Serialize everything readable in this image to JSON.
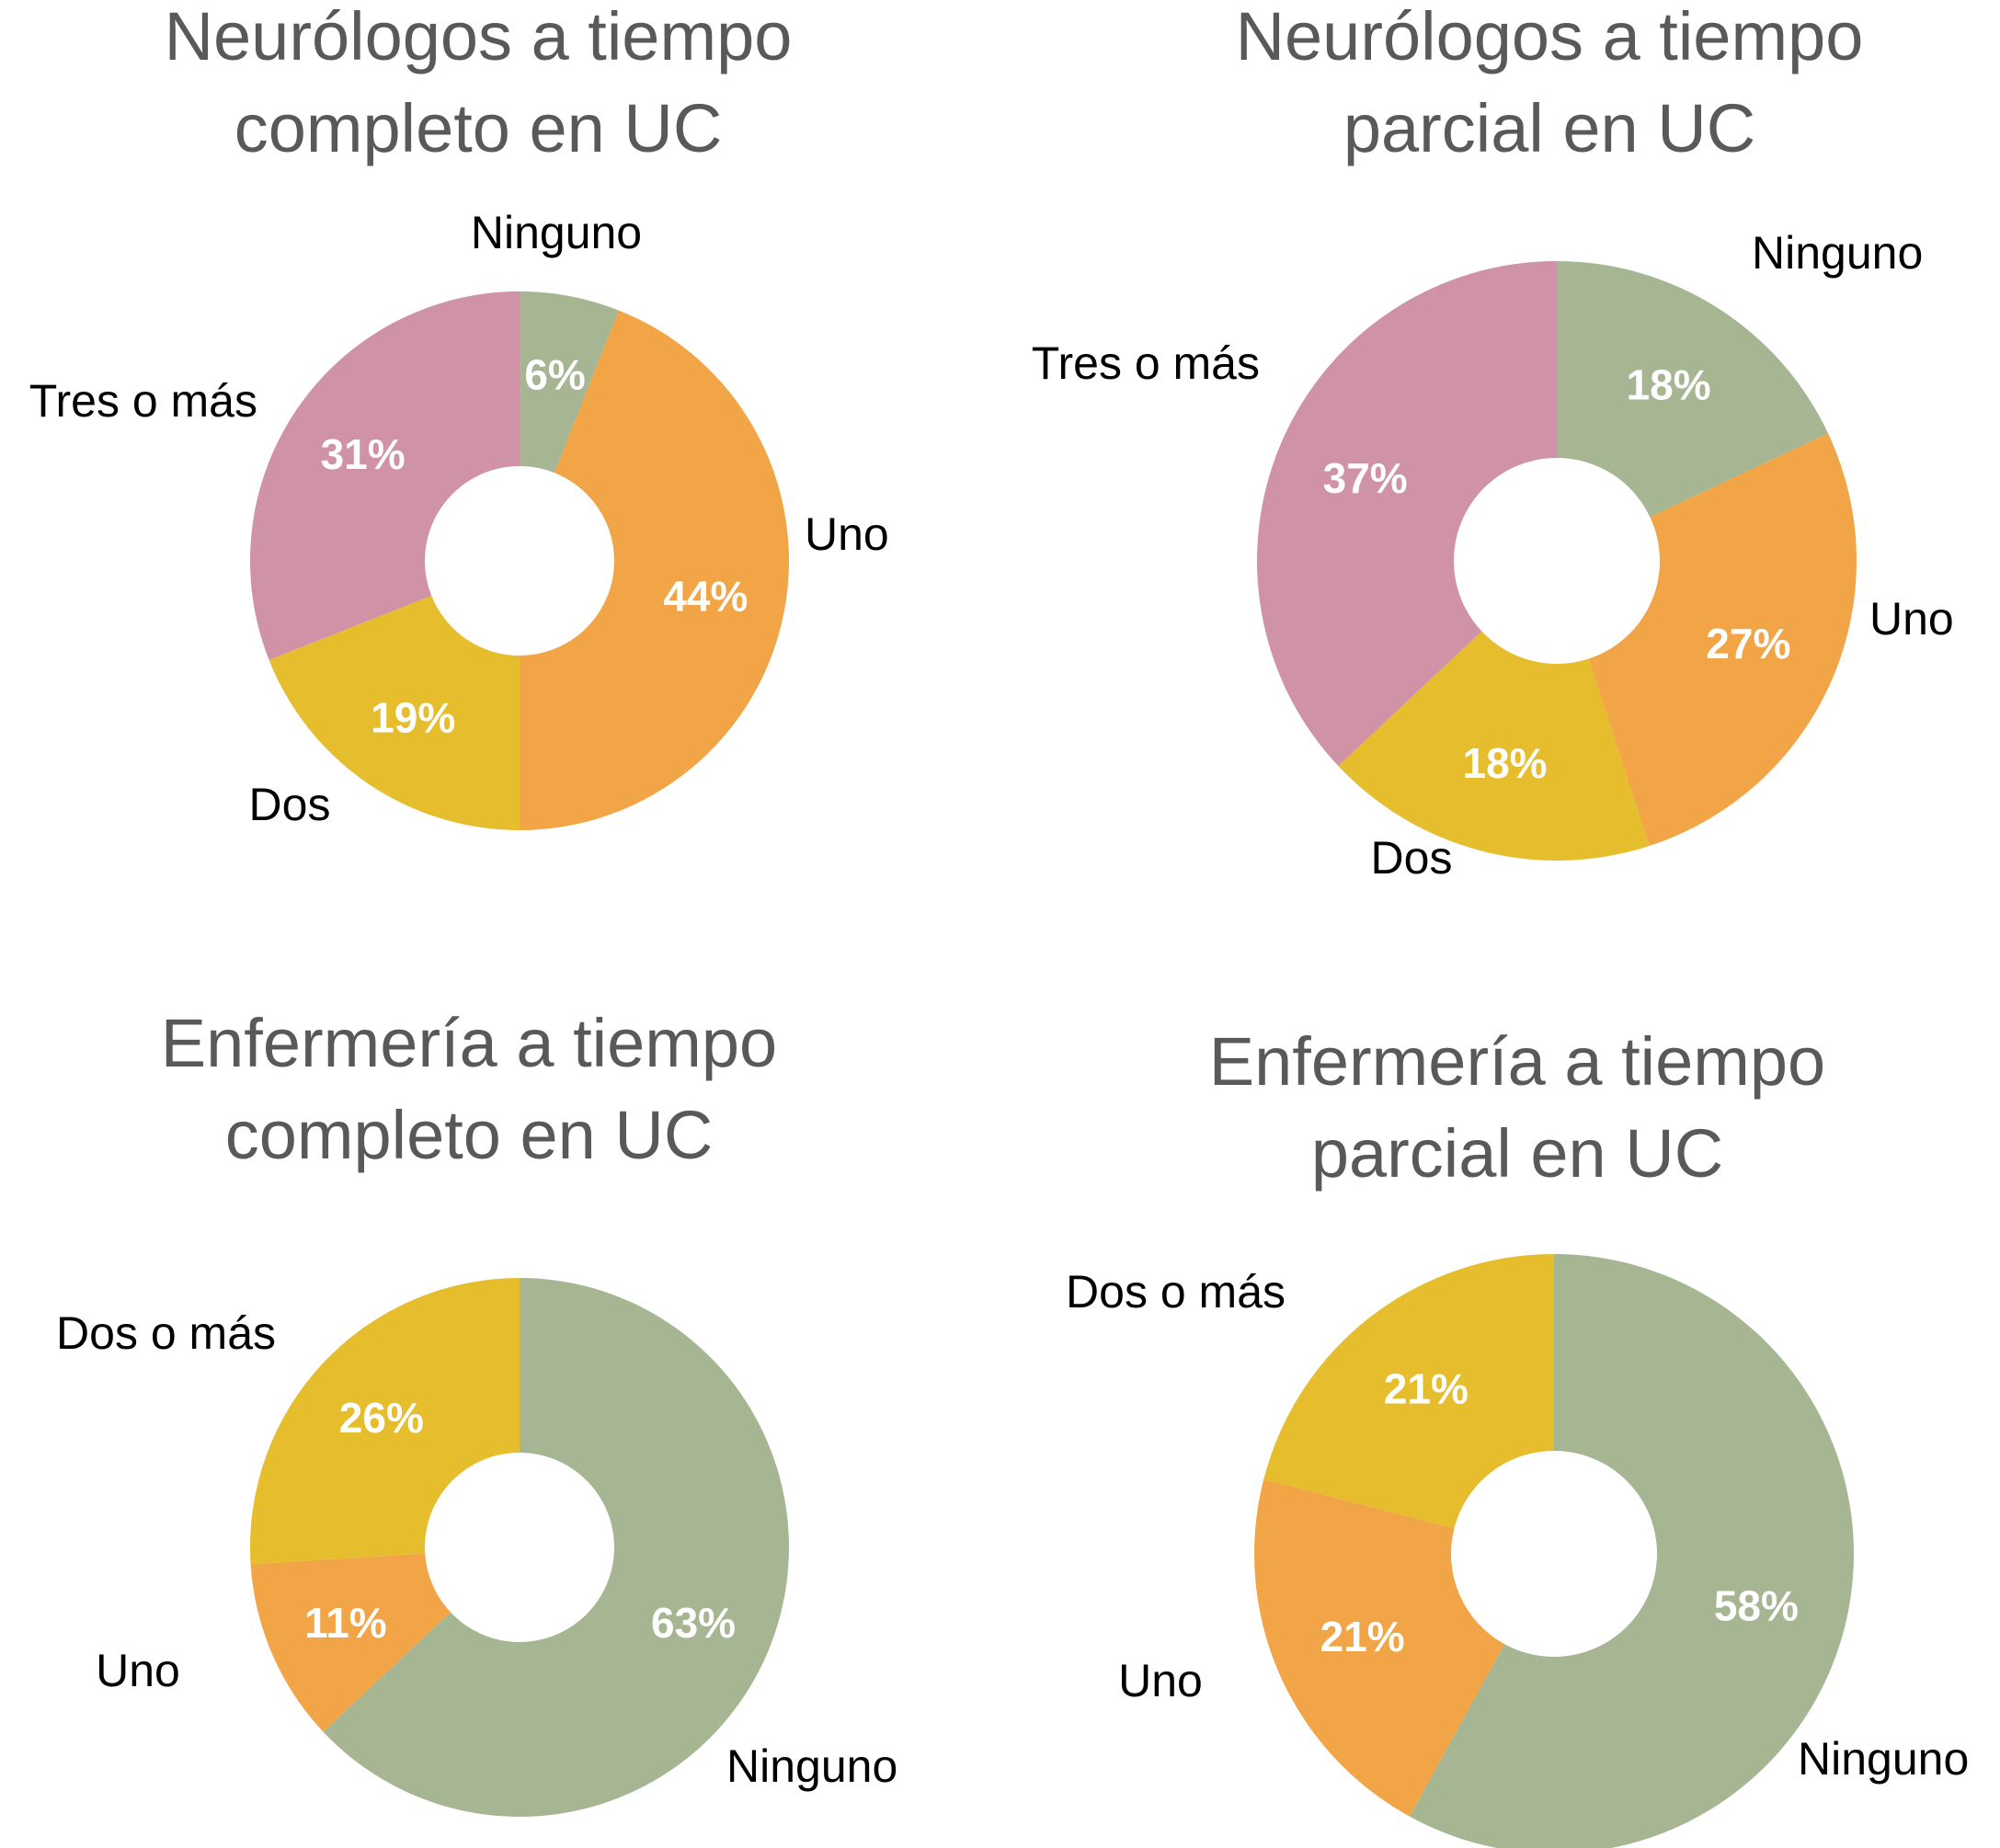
{
  "colors": {
    "Ninguno": "#a6b592",
    "Uno": "#f2a546",
    "Dos": "#e6bd2c",
    "Dos o más": "#e6bd2c",
    "Tres o más": "#d092a7"
  },
  "chart_data": [
    {
      "type": "pie",
      "title_lines": [
        "Neurólogos a tiempo",
        "completo en UC"
      ],
      "categories": [
        "Ninguno",
        "Uno",
        "Dos",
        "Tres o más"
      ],
      "values": [
        6,
        44,
        19,
        31
      ],
      "value_labels": [
        "6%",
        "44%",
        "19%",
        "31%"
      ]
    },
    {
      "type": "pie",
      "title_lines": [
        "Neurólogos a tiempo",
        "parcial en UC"
      ],
      "categories": [
        "Ninguno",
        "Uno",
        "Dos",
        "Tres o más"
      ],
      "values": [
        18,
        27,
        18,
        37
      ],
      "value_labels": [
        "18%",
        "27%",
        "18%",
        "37%"
      ]
    },
    {
      "type": "pie",
      "title_lines": [
        "Enfermería a tiempo",
        "completo en UC"
      ],
      "categories": [
        "Ninguno",
        "Uno",
        "Dos o más"
      ],
      "values": [
        63,
        11,
        26
      ],
      "value_labels": [
        "63%",
        "11%",
        "26%"
      ]
    },
    {
      "type": "pie",
      "title_lines": [
        "Enfermería a tiempo",
        "parcial en UC"
      ],
      "categories": [
        "Ninguno",
        "Uno",
        "Dos o más"
      ],
      "values": [
        58,
        21,
        21
      ],
      "value_labels": [
        "58%",
        "21%",
        "21%"
      ]
    }
  ]
}
